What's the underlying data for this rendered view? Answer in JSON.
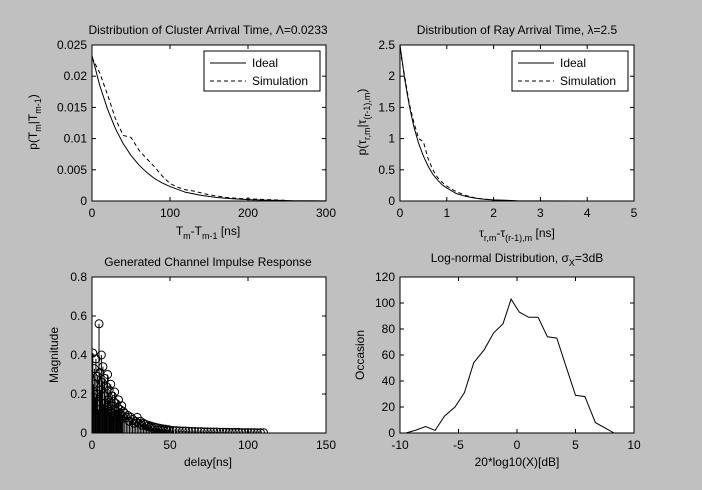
{
  "figure": {
    "background": "#c0c0c0",
    "axes_background": "#ffffff"
  },
  "chart_data": [
    {
      "type": "line",
      "title": "Distribution of Cluster Arrival Time, Λ=0.0233",
      "xlabel_main": "T",
      "xlabel_sub1": "m",
      "xlabel_mid": "-T",
      "xlabel_sub2": "m-1",
      "xlabel_unit": " [ns]",
      "ylabel_main": "p(T",
      "ylabel_sub1": "m",
      "ylabel_mid": "|T",
      "ylabel_sub2": "m-1",
      "ylabel_end": ")",
      "xlim": [
        0,
        300
      ],
      "ylim": [
        0,
        0.025
      ],
      "xticks": [
        "0",
        "100",
        "200",
        "300"
      ],
      "yticks": [
        "0",
        "0.005",
        "0.01",
        "0.015",
        "0.02",
        "0.025"
      ],
      "legend": {
        "position": "top-right",
        "entries": [
          "Ideal",
          "Simulation"
        ]
      },
      "series": [
        {
          "name": "Ideal",
          "style": "solid",
          "x": [
            0,
            10,
            20,
            30,
            40,
            50,
            60,
            70,
            80,
            90,
            100,
            120,
            140,
            160,
            180,
            200,
            220,
            240,
            260,
            280,
            300
          ],
          "y": [
            0.0233,
            0.0185,
            0.0147,
            0.0116,
            0.0092,
            0.0073,
            0.0058,
            0.0046,
            0.0036,
            0.0029,
            0.0023,
            0.0014,
            0.0009,
            0.00056,
            0.00035,
            0.00022,
            0.00014,
            9e-05,
            5e-05,
            3e-05,
            2e-05
          ]
        },
        {
          "name": "Simulation",
          "style": "dashed",
          "x": [
            0,
            10,
            20,
            30,
            40,
            50,
            60,
            70,
            80,
            90,
            100,
            110,
            120,
            130,
            150,
            170,
            190,
            210,
            230,
            250
          ],
          "y": [
            0.023,
            0.0205,
            0.017,
            0.0132,
            0.0105,
            0.0102,
            0.0082,
            0.0068,
            0.0055,
            0.004,
            0.0028,
            0.0022,
            0.0018,
            0.0016,
            0.001,
            0.0006,
            0.0004,
            0.0003,
            0.0002,
            0.0001
          ]
        }
      ]
    },
    {
      "type": "line",
      "title": "Distribution of Ray Arrival Time, λ=2.5",
      "xlabel_main": "τ",
      "xlabel_sub1": "r,m",
      "xlabel_mid": "-τ",
      "xlabel_sub2": "(r-1),m",
      "xlabel_unit": " [ns]",
      "ylabel_main": "p(τ",
      "ylabel_sub1": "r,m",
      "ylabel_mid": "|τ",
      "ylabel_sub2": "(r-1),m",
      "ylabel_end": ")",
      "xlim": [
        0,
        5
      ],
      "ylim": [
        0,
        2.5
      ],
      "xticks": [
        "0",
        "1",
        "2",
        "3",
        "4",
        "5"
      ],
      "yticks": [
        "0",
        "0.5",
        "1",
        "1.5",
        "2",
        "2.5"
      ],
      "legend": {
        "position": "top-right",
        "entries": [
          "Ideal",
          "Simulation"
        ]
      },
      "series": [
        {
          "name": "Ideal",
          "style": "solid",
          "x": [
            0,
            0.1,
            0.2,
            0.3,
            0.4,
            0.5,
            0.6,
            0.7,
            0.8,
            0.9,
            1.0,
            1.2,
            1.4,
            1.6,
            1.8,
            2.0,
            2.5,
            3.0,
            4.0,
            5.0
          ],
          "y": [
            2.5,
            1.95,
            1.52,
            1.18,
            0.92,
            0.72,
            0.56,
            0.43,
            0.34,
            0.26,
            0.21,
            0.12,
            0.075,
            0.046,
            0.028,
            0.017,
            0.005,
            0.0014,
            0.0001,
            0.0
          ]
        },
        {
          "name": "Simulation",
          "style": "dashed",
          "x": [
            0,
            0.1,
            0.2,
            0.3,
            0.4,
            0.5,
            0.6,
            0.7,
            0.8,
            0.9,
            1.0,
            1.1,
            1.2,
            1.4,
            1.6,
            1.8,
            2.0,
            2.2
          ],
          "y": [
            2.42,
            2.0,
            1.55,
            1.25,
            1.0,
            0.95,
            0.68,
            0.5,
            0.38,
            0.3,
            0.24,
            0.19,
            0.15,
            0.09,
            0.05,
            0.03,
            0.015,
            0.0
          ]
        }
      ]
    },
    {
      "type": "stem",
      "title": "Generated Channel Impulse Response",
      "xlabel": "delay[ns]",
      "ylabel": "Magnitude",
      "xlim": [
        0,
        150
      ],
      "ylim": [
        0,
        0.8
      ],
      "xticks": [
        "0",
        "50",
        "100",
        "150"
      ],
      "yticks": [
        "0",
        "0.2",
        "0.4",
        "0.6",
        "0.8"
      ],
      "x": [
        0.5,
        1,
        1.5,
        2,
        2.5,
        3,
        3.5,
        4,
        4.5,
        5,
        5.5,
        6,
        6.5,
        7,
        7.5,
        8,
        8.5,
        9,
        9.5,
        10,
        10.5,
        11,
        11.5,
        12,
        12.5,
        13,
        13.5,
        14,
        14.5,
        15,
        15.5,
        16,
        16.5,
        17,
        17.5,
        18,
        18.5,
        19,
        19.5,
        20,
        21,
        22,
        23,
        24,
        25,
        26,
        27,
        28,
        29,
        30,
        31,
        32,
        33,
        34,
        35,
        36,
        37,
        38,
        39,
        40,
        41,
        42,
        43,
        44,
        45,
        46,
        47,
        48,
        49,
        50,
        52,
        54,
        56,
        58,
        60,
        62,
        64,
        66,
        68,
        70,
        72,
        74,
        76,
        78,
        80,
        82,
        84,
        86,
        88,
        90,
        92,
        94,
        96,
        98,
        100,
        102,
        104,
        106,
        108,
        110
      ],
      "y": [
        0.41,
        0.25,
        0.33,
        0.18,
        0.38,
        0.2,
        0.29,
        0.12,
        0.56,
        0.31,
        0.22,
        0.4,
        0.26,
        0.34,
        0.15,
        0.28,
        0.19,
        0.24,
        0.13,
        0.3,
        0.17,
        0.22,
        0.11,
        0.25,
        0.14,
        0.19,
        0.09,
        0.16,
        0.21,
        0.12,
        0.15,
        0.08,
        0.13,
        0.17,
        0.1,
        0.12,
        0.07,
        0.14,
        0.09,
        0.11,
        0.1,
        0.08,
        0.09,
        0.06,
        0.08,
        0.07,
        0.05,
        0.06,
        0.08,
        0.05,
        0.06,
        0.04,
        0.05,
        0.045,
        0.035,
        0.04,
        0.03,
        0.035,
        0.025,
        0.03,
        0.028,
        0.022,
        0.025,
        0.02,
        0.022,
        0.018,
        0.02,
        0.015,
        0.017,
        0.014,
        0.013,
        0.012,
        0.011,
        0.01,
        0.01,
        0.009,
        0.008,
        0.008,
        0.007,
        0.007,
        0.006,
        0.006,
        0.005,
        0.005,
        0.005,
        0.004,
        0.004,
        0.004,
        0.003,
        0.003,
        0.003,
        0.003,
        0.002,
        0.002,
        0.002,
        0.002,
        0.002,
        0.001,
        0.001,
        0.001
      ]
    },
    {
      "type": "line",
      "title_main": "Log-normal Distribution, σ",
      "title_sub": "X",
      "title_end": "=3dB",
      "xlabel": "20*log10(X)[dB]",
      "ylabel": "Occasion",
      "xlim": [
        -10,
        10
      ],
      "ylim": [
        0,
        120
      ],
      "xticks": [
        "-10",
        "-5",
        "0",
        "5",
        "10"
      ],
      "yticks": [
        "0",
        "20",
        "40",
        "60",
        "80",
        "100",
        "120"
      ],
      "series": [
        {
          "name": "",
          "style": "solid",
          "x": [
            -9.5,
            -8.7,
            -7.8,
            -7.0,
            -6.2,
            -5.3,
            -4.5,
            -3.7,
            -2.8,
            -2.0,
            -1.2,
            -0.5,
            0.2,
            1.0,
            1.8,
            2.6,
            3.4,
            4.2,
            5.0,
            5.8,
            6.7,
            7.5,
            8.3
          ],
          "y": [
            0,
            2,
            5,
            2,
            13,
            20,
            31,
            54,
            64,
            77,
            84,
            103,
            93,
            89,
            89,
            74,
            73,
            51,
            29,
            28,
            8,
            4,
            0
          ]
        }
      ]
    }
  ]
}
